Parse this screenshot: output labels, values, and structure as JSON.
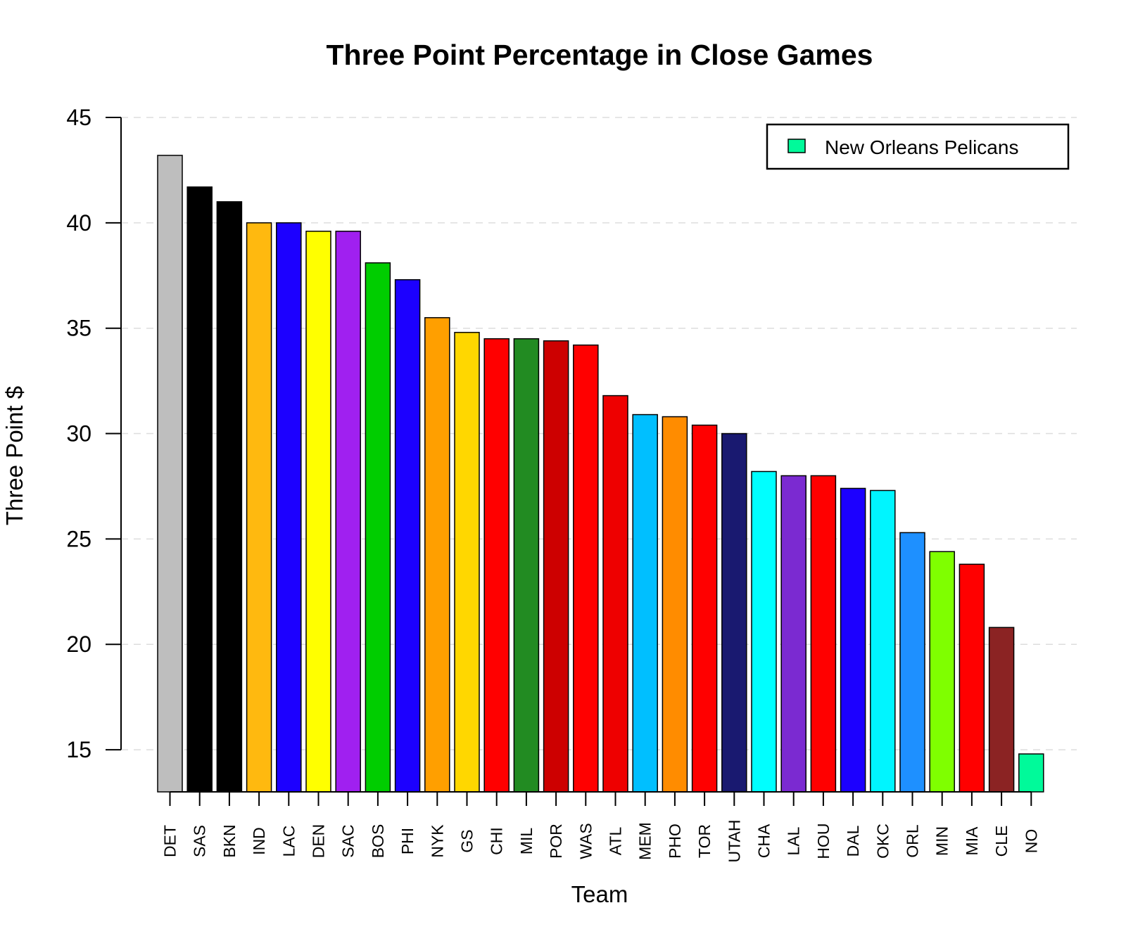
{
  "chart_data": {
    "type": "bar",
    "title": "Three Point Percentage in Close Games",
    "xlabel": "Team",
    "ylabel": "Three Point $",
    "ylim": [
      13,
      45
    ],
    "yticks": [
      15,
      20,
      25,
      30,
      35,
      40,
      45
    ],
    "grid": "horizontal dashed",
    "legend": {
      "position": "top-right",
      "entries": [
        {
          "label": "New Orleans Pelicans",
          "color": "#00FA9A"
        }
      ]
    },
    "categories": [
      "DET",
      "SAS",
      "BKN",
      "IND",
      "LAC",
      "DEN",
      "SAC",
      "BOS",
      "PHI",
      "NYK",
      "GS",
      "CHI",
      "MIL",
      "POR",
      "WAS",
      "ATL",
      "MEM",
      "PHO",
      "TOR",
      "UTAH",
      "CHA",
      "LAL",
      "HOU",
      "DAL",
      "OKC",
      "ORL",
      "MIN",
      "MIA",
      "CLE",
      "NO"
    ],
    "values": [
      43.2,
      41.7,
      41.0,
      40.0,
      40.0,
      39.6,
      39.6,
      38.1,
      37.3,
      35.5,
      34.8,
      34.5,
      34.5,
      34.4,
      34.2,
      31.8,
      30.9,
      30.8,
      30.4,
      30.0,
      28.2,
      28.0,
      28.0,
      27.4,
      27.3,
      25.3,
      24.4,
      23.8,
      20.8,
      14.8
    ],
    "colors": [
      "#BEBEBE",
      "#000000",
      "#000000",
      "#FFB90F",
      "#1C00FF",
      "#FFFF00",
      "#A020F0",
      "#00CD00",
      "#1C00FF",
      "#FF9F00",
      "#FFD700",
      "#FF0000",
      "#228B22",
      "#CD0000",
      "#FF0000",
      "#EE0000",
      "#00BFFF",
      "#FF8C00",
      "#FF0000",
      "#191970",
      "#00FFFF",
      "#7B2AD1",
      "#FF0000",
      "#1C00FF",
      "#00F5FF",
      "#1E90FF",
      "#7FFF00",
      "#FF0000",
      "#8B2323",
      "#00FA9A"
    ]
  }
}
